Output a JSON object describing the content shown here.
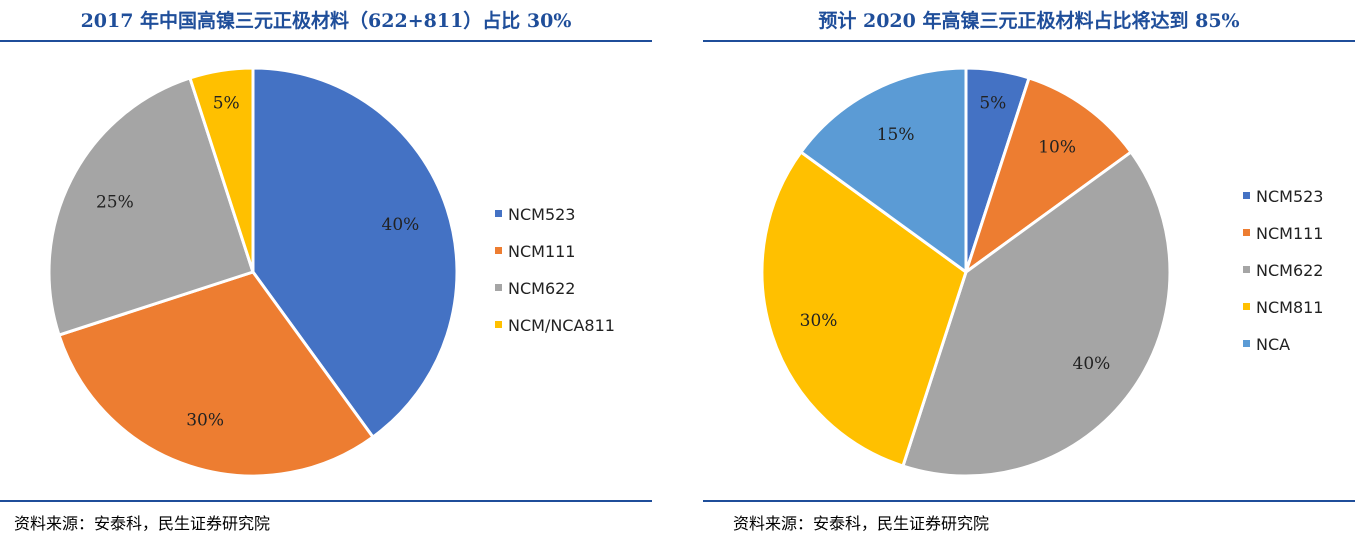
{
  "source_text": "资料来源：安泰科，民生证券研究院",
  "chart_data": [
    {
      "type": "pie",
      "title": "2017 年中国高镍三元正极材料（622+811）占比 30%",
      "categories": [
        "NCM523",
        "NCM111",
        "NCM622",
        "NCM/NCA811"
      ],
      "values": [
        40,
        30,
        25,
        5
      ],
      "labels": [
        "40%",
        "30%",
        "25%",
        "5%"
      ],
      "colors": [
        "#4472c4",
        "#ed7d31",
        "#a5a5a5",
        "#ffc000"
      ],
      "legend_position": "right"
    },
    {
      "type": "pie",
      "title": "预计 2020 年高镍三元正极材料占比将达到 85%",
      "categories": [
        "NCM523",
        "NCM111",
        "NCM622",
        "NCM811",
        "NCA"
      ],
      "values": [
        5,
        10,
        40,
        30,
        15
      ],
      "labels": [
        "5%",
        "10%",
        "40%",
        "30%",
        "15%"
      ],
      "colors": [
        "#4472c4",
        "#ed7d31",
        "#a5a5a5",
        "#ffc000",
        "#5b9bd5"
      ],
      "legend_position": "right"
    }
  ]
}
